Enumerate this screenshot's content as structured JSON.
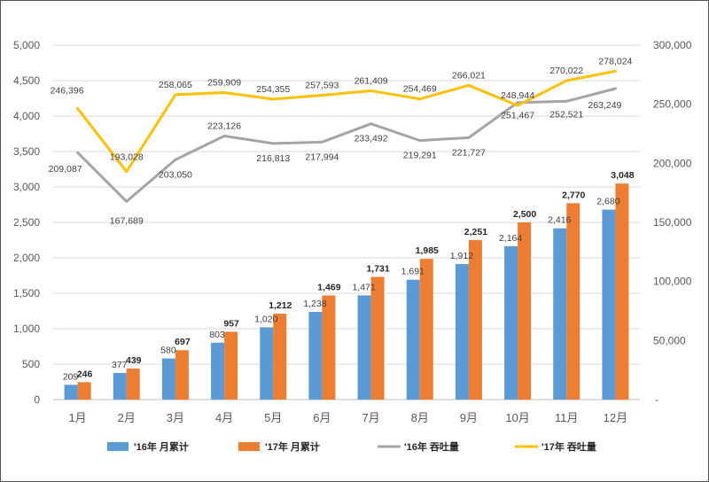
{
  "chart_data": {
    "type": "bar",
    "categories": [
      "1月",
      "2月",
      "3月",
      "4月",
      "5月",
      "6月",
      "7月",
      "8月",
      "9月",
      "10月",
      "11月",
      "12月"
    ],
    "series": [
      {
        "name": "'16年 月累计",
        "kind": "bar",
        "axis": "left",
        "color": "#5B9BD5",
        "values": [
          209,
          377,
          580,
          803,
          1020,
          1238,
          1471,
          1691,
          1912,
          2164,
          2416,
          2680
        ],
        "labels": [
          "209",
          "377",
          "580",
          "803",
          "1,020",
          "1,238",
          "1,471",
          "1,691",
          "1,912",
          "2,164",
          "2,416",
          "2,680"
        ]
      },
      {
        "name": "'17年 月累计",
        "kind": "bar",
        "axis": "left",
        "color": "#ED7D31",
        "values": [
          246,
          439,
          697,
          957,
          1212,
          1469,
          1731,
          1985,
          2251,
          2500,
          2770,
          3048
        ],
        "labels": [
          "246",
          "439",
          "697",
          "957",
          "1,212",
          "1,469",
          "1,731",
          "1,985",
          "2,251",
          "2,500",
          "2,770",
          "3,048"
        ]
      },
      {
        "name": "'16年 吞吐量",
        "kind": "line",
        "axis": "right",
        "color": "#A5A5A5",
        "values": [
          209087,
          167689,
          203050,
          223126,
          216813,
          217994,
          233492,
          219291,
          221727,
          251467,
          252521,
          263249
        ],
        "labels": [
          "209,087",
          "167,689",
          "203,050",
          "223,126",
          "216,813",
          "217,994",
          "233,492",
          "219,291",
          "221,727",
          "251,467",
          "252,521",
          "263,249"
        ]
      },
      {
        "name": "'17年 吞吐量",
        "kind": "line",
        "axis": "right",
        "color": "#FFC000",
        "values": [
          246396,
          193028,
          258065,
          259909,
          254355,
          257593,
          261409,
          254469,
          266021,
          248944,
          270022,
          278024
        ],
        "labels": [
          "246,396",
          "193,028",
          "258,065",
          "259,909",
          "254,355",
          "257,593",
          "261,409",
          "254,469",
          "266,021",
          "248,944",
          "270,022",
          "278,024"
        ]
      }
    ],
    "left_axis": {
      "min": 0,
      "max": 5000,
      "ticks": [
        "0",
        "500",
        "1,000",
        "1,500",
        "2,000",
        "2,500",
        "3,000",
        "3,500",
        "4,000",
        "4,500",
        "5,000"
      ]
    },
    "right_axis": {
      "min": 0,
      "max": 300000,
      "ticks": [
        "-",
        "50,000",
        "100,000",
        "150,000",
        "200,000",
        "250,000",
        "300,000"
      ]
    },
    "grid": true,
    "legend": "bottom"
  }
}
